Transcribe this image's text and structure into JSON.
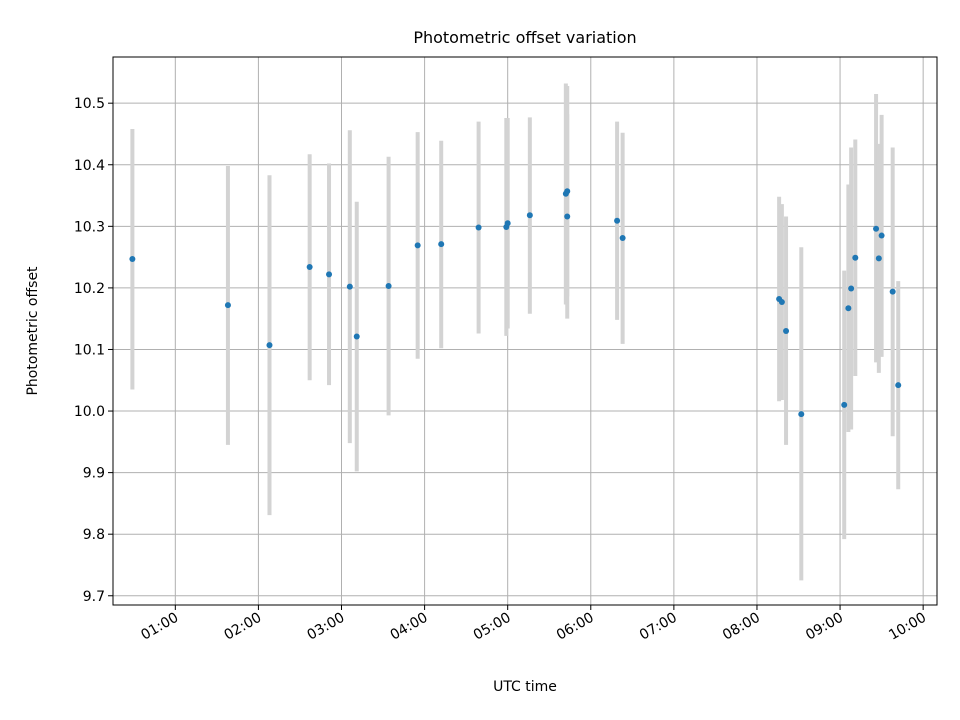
{
  "chart_data": {
    "type": "scatter",
    "title": "Photometric offset variation",
    "xlabel": "UTC time",
    "ylabel": "Photometric offset",
    "xlim": [
      "00:15",
      "10:10"
    ],
    "ylim": [
      9.685,
      10.575
    ],
    "xticks": [
      "01:00",
      "02:00",
      "03:00",
      "04:00",
      "05:00",
      "06:00",
      "07:00",
      "08:00",
      "09:00",
      "10:00"
    ],
    "yticks": [
      "9.7",
      "9.8",
      "9.9",
      "10.0",
      "10.1",
      "10.2",
      "10.3",
      "10.4",
      "10.5"
    ],
    "grid": true,
    "marker_color": "#1f77b4",
    "errorbar_color": "#d3d3d3",
    "points": [
      {
        "x": "00:29",
        "y": 10.247,
        "lo": 10.035,
        "hi": 10.458
      },
      {
        "x": "01:38",
        "y": 10.172,
        "lo": 9.945,
        "hi": 10.398
      },
      {
        "x": "02:08",
        "y": 10.107,
        "lo": 9.831,
        "hi": 10.383
      },
      {
        "x": "02:37",
        "y": 10.234,
        "lo": 10.05,
        "hi": 10.417
      },
      {
        "x": "02:51",
        "y": 10.222,
        "lo": 10.042,
        "hi": 10.402
      },
      {
        "x": "03:06",
        "y": 10.202,
        "lo": 9.948,
        "hi": 10.456
      },
      {
        "x": "03:11",
        "y": 10.121,
        "lo": 9.902,
        "hi": 10.34
      },
      {
        "x": "03:34",
        "y": 10.203,
        "lo": 9.993,
        "hi": 10.413
      },
      {
        "x": "03:55",
        "y": 10.269,
        "lo": 10.085,
        "hi": 10.453
      },
      {
        "x": "04:12",
        "y": 10.271,
        "lo": 10.102,
        "hi": 10.439
      },
      {
        "x": "04:39",
        "y": 10.298,
        "lo": 10.126,
        "hi": 10.47
      },
      {
        "x": "04:59",
        "y": 10.299,
        "lo": 10.122,
        "hi": 10.476
      },
      {
        "x": "05:00",
        "y": 10.305,
        "lo": 10.134,
        "hi": 10.476
      },
      {
        "x": "05:16",
        "y": 10.318,
        "lo": 10.158,
        "hi": 10.477
      },
      {
        "x": "05:42",
        "y": 10.353,
        "lo": 10.173,
        "hi": 10.532
      },
      {
        "x": "05:43",
        "y": 10.357,
        "lo": 10.186,
        "hi": 10.528
      },
      {
        "x": "05:43",
        "y": 10.316,
        "lo": 10.15,
        "hi": 10.482
      },
      {
        "x": "06:19",
        "y": 10.309,
        "lo": 10.148,
        "hi": 10.47
      },
      {
        "x": "06:23",
        "y": 10.281,
        "lo": 10.109,
        "hi": 10.452
      },
      {
        "x": "08:16",
        "y": 10.182,
        "lo": 10.016,
        "hi": 10.348
      },
      {
        "x": "08:18",
        "y": 10.177,
        "lo": 10.018,
        "hi": 10.336
      },
      {
        "x": "08:21",
        "y": 10.13,
        "lo": 9.945,
        "hi": 10.316
      },
      {
        "x": "08:32",
        "y": 9.995,
        "lo": 9.725,
        "hi": 10.266
      },
      {
        "x": "09:03",
        "y": 10.01,
        "lo": 9.792,
        "hi": 10.228
      },
      {
        "x": "09:06",
        "y": 10.167,
        "lo": 9.966,
        "hi": 10.368
      },
      {
        "x": "09:08",
        "y": 10.199,
        "lo": 9.97,
        "hi": 10.428
      },
      {
        "x": "09:11",
        "y": 10.249,
        "lo": 10.057,
        "hi": 10.441
      },
      {
        "x": "09:26",
        "y": 10.296,
        "lo": 10.079,
        "hi": 10.515
      },
      {
        "x": "09:28",
        "y": 10.248,
        "lo": 10.062,
        "hi": 10.434
      },
      {
        "x": "09:30",
        "y": 10.285,
        "lo": 10.088,
        "hi": 10.481
      },
      {
        "x": "09:38",
        "y": 10.194,
        "lo": 9.959,
        "hi": 10.428
      },
      {
        "x": "09:42",
        "y": 10.042,
        "lo": 9.873,
        "hi": 10.211
      }
    ]
  }
}
